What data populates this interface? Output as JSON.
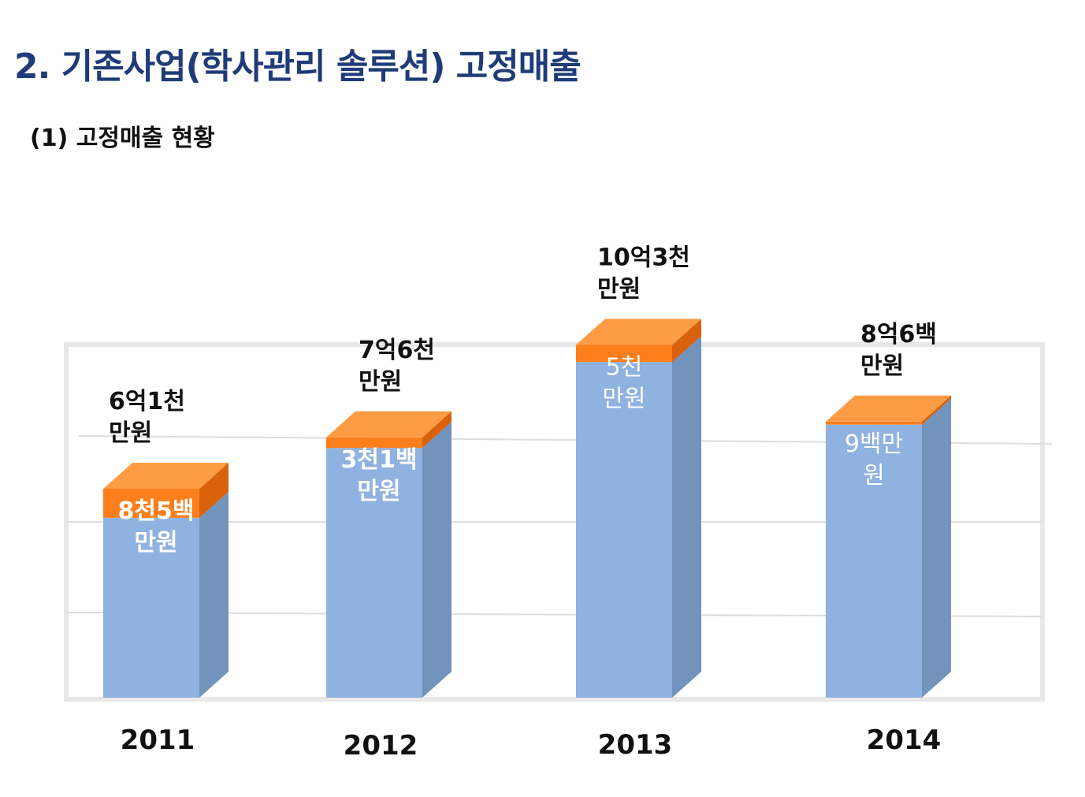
{
  "header": {
    "title": "2. 기존사업(학사관리 솔루션) 고정매출",
    "subtitle": "(1) 고정매출 현황"
  },
  "colors": {
    "title": "#1f3b78",
    "bar_front": "#8fb2e0",
    "bar_side": "#7193bc",
    "cap_front": "#fd7f1c",
    "cap_top": "#fe9c45",
    "cap_side": "#d8620b"
  },
  "chart_data": {
    "type": "bar",
    "stacked": true,
    "three_d": true,
    "categories": [
      "2011",
      "2012",
      "2013",
      "2014"
    ],
    "total_labels": [
      [
        "6억1천",
        "만원"
      ],
      [
        "7억6천",
        "만원"
      ],
      [
        "10억3천",
        "만원"
      ],
      [
        "8억6백",
        "만원"
      ]
    ],
    "increment_labels": [
      [
        "8천5백",
        "만원"
      ],
      [
        "3천1백",
        "만원"
      ],
      [
        "5천",
        "만원"
      ],
      [
        "9백만",
        "원"
      ]
    ],
    "totals": [
      6.1,
      7.6,
      10.3,
      8.06
    ],
    "increments": [
      0.85,
      0.31,
      0.5,
      0.09
    ],
    "unit": "억원",
    "grid": true,
    "legend": "none"
  }
}
